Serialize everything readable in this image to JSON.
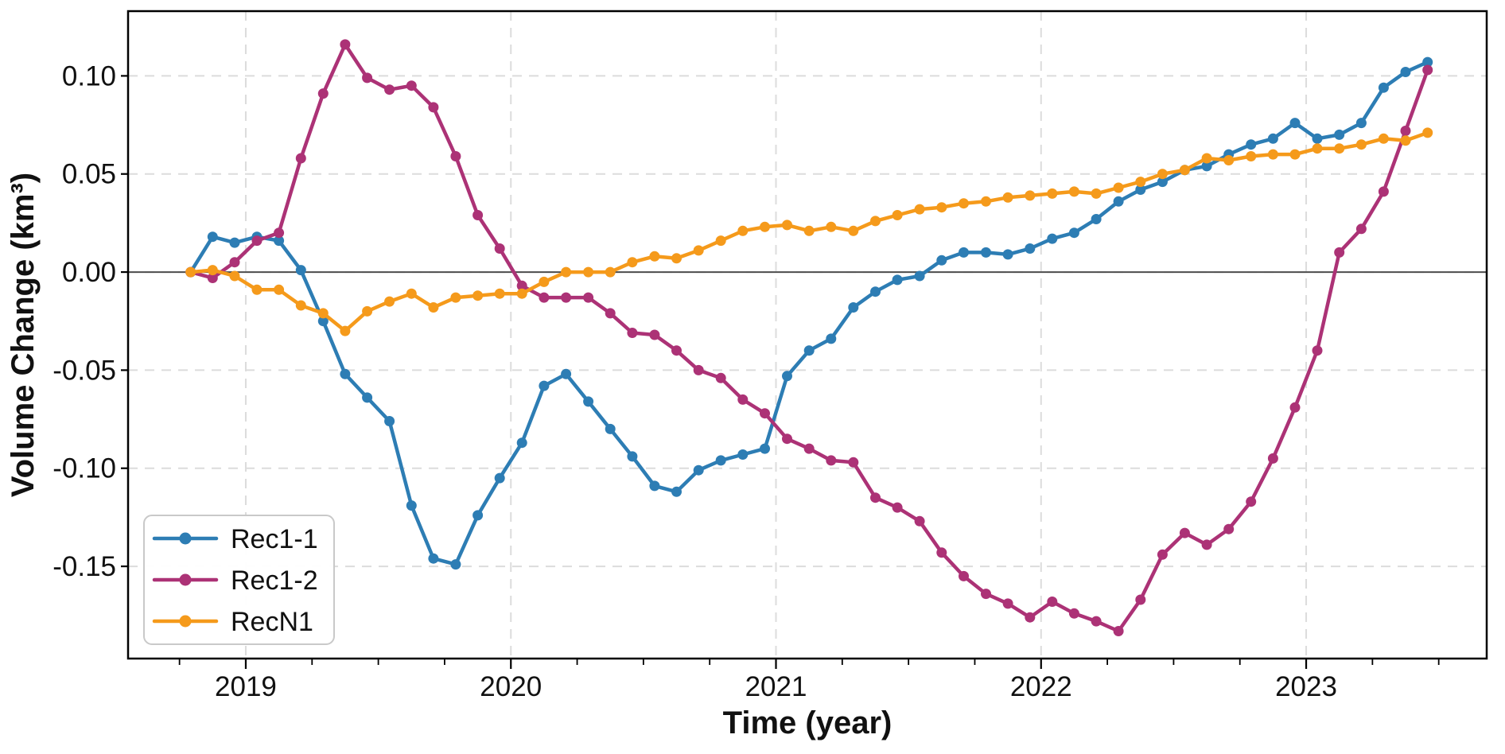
{
  "chart_data": {
    "type": "line",
    "title": "",
    "xlabel": "Time (year)",
    "ylabel": "Volume Change (km³)",
    "xlim": [
      2018.556,
      2023.681
    ],
    "ylim": [
      -0.197,
      0.133
    ],
    "grid": true,
    "legend_position": "lower-left",
    "x_major_ticks": [
      {
        "value": 2019,
        "label": "2019"
      },
      {
        "value": 2020,
        "label": "2020"
      },
      {
        "value": 2021,
        "label": "2021"
      },
      {
        "value": 2022,
        "label": "2022"
      },
      {
        "value": 2023,
        "label": "2023"
      }
    ],
    "x_minor_ticks": [
      2018.75,
      2019.25,
      2019.5,
      2019.75,
      2020.25,
      2020.5,
      2020.75,
      2021.25,
      2021.5,
      2021.75,
      2022.25,
      2022.5,
      2022.75,
      2023.25,
      2023.5
    ],
    "y_ticks": [
      {
        "value": 0.1,
        "label": "0.10"
      },
      {
        "value": 0.05,
        "label": "0.05"
      },
      {
        "value": 0.0,
        "label": "0.00"
      },
      {
        "value": -0.05,
        "label": "-0.05"
      },
      {
        "value": -0.1,
        "label": "-0.10"
      },
      {
        "value": -0.15,
        "label": "-0.15"
      }
    ],
    "zero_line": 0.0,
    "x": [
      2018.792,
      2018.875,
      2018.958,
      2019.042,
      2019.125,
      2019.208,
      2019.292,
      2019.375,
      2019.458,
      2019.542,
      2019.625,
      2019.708,
      2019.792,
      2019.875,
      2019.958,
      2020.042,
      2020.125,
      2020.208,
      2020.292,
      2020.375,
      2020.458,
      2020.542,
      2020.625,
      2020.708,
      2020.792,
      2020.875,
      2020.958,
      2021.042,
      2021.125,
      2021.208,
      2021.292,
      2021.375,
      2021.458,
      2021.542,
      2021.625,
      2021.708,
      2021.792,
      2021.875,
      2021.958,
      2022.042,
      2022.125,
      2022.208,
      2022.292,
      2022.375,
      2022.458,
      2022.542,
      2022.625,
      2022.708,
      2022.792,
      2022.875,
      2022.958,
      2023.042,
      2023.125,
      2023.208,
      2023.292,
      2023.375,
      2023.458
    ],
    "series": [
      {
        "name": "Rec1-1",
        "color": "#2d7db4",
        "values": [
          0.0,
          0.018,
          0.015,
          0.018,
          0.016,
          0.001,
          -0.025,
          -0.052,
          -0.064,
          -0.076,
          -0.119,
          -0.146,
          -0.149,
          -0.124,
          -0.105,
          -0.087,
          -0.058,
          -0.052,
          -0.066,
          -0.08,
          -0.094,
          -0.109,
          -0.112,
          -0.101,
          -0.096,
          -0.093,
          -0.09,
          -0.053,
          -0.04,
          -0.034,
          -0.018,
          -0.01,
          -0.004,
          -0.002,
          0.006,
          0.01,
          0.01,
          0.009,
          0.012,
          0.017,
          0.02,
          0.027,
          0.036,
          0.042,
          0.046,
          0.052,
          0.054,
          0.06,
          0.065,
          0.068,
          0.076,
          0.068,
          0.07,
          0.076,
          0.094,
          0.102,
          0.107
        ]
      },
      {
        "name": "Rec1-2",
        "color": "#ac3276",
        "values": [
          0.0,
          -0.003,
          0.005,
          0.016,
          0.02,
          0.058,
          0.091,
          0.116,
          0.099,
          0.093,
          0.095,
          0.084,
          0.059,
          0.029,
          0.012,
          -0.007,
          -0.013,
          -0.013,
          -0.013,
          -0.021,
          -0.031,
          -0.032,
          -0.04,
          -0.05,
          -0.054,
          -0.065,
          -0.072,
          -0.085,
          -0.09,
          -0.096,
          -0.097,
          -0.115,
          -0.12,
          -0.127,
          -0.143,
          -0.155,
          -0.164,
          -0.169,
          -0.176,
          -0.168,
          -0.174,
          -0.178,
          -0.183,
          -0.167,
          -0.144,
          -0.133,
          -0.139,
          -0.131,
          -0.117,
          -0.095,
          -0.069,
          -0.04,
          0.01,
          0.022,
          0.041,
          0.072,
          0.103
        ]
      },
      {
        "name": "RecN1",
        "color": "#f59a1b",
        "values": [
          0.0,
          0.001,
          -0.002,
          -0.009,
          -0.009,
          -0.017,
          -0.021,
          -0.03,
          -0.02,
          -0.015,
          -0.011,
          -0.018,
          -0.013,
          -0.012,
          -0.011,
          -0.011,
          -0.005,
          0.0,
          0.0,
          0.0,
          0.005,
          0.008,
          0.007,
          0.011,
          0.016,
          0.021,
          0.023,
          0.024,
          0.021,
          0.023,
          0.021,
          0.026,
          0.029,
          0.032,
          0.033,
          0.035,
          0.036,
          0.038,
          0.039,
          0.04,
          0.041,
          0.04,
          0.043,
          0.046,
          0.05,
          0.052,
          0.058,
          0.057,
          0.059,
          0.06,
          0.06,
          0.063,
          0.063,
          0.065,
          0.068,
          0.067,
          0.071
        ]
      }
    ]
  }
}
